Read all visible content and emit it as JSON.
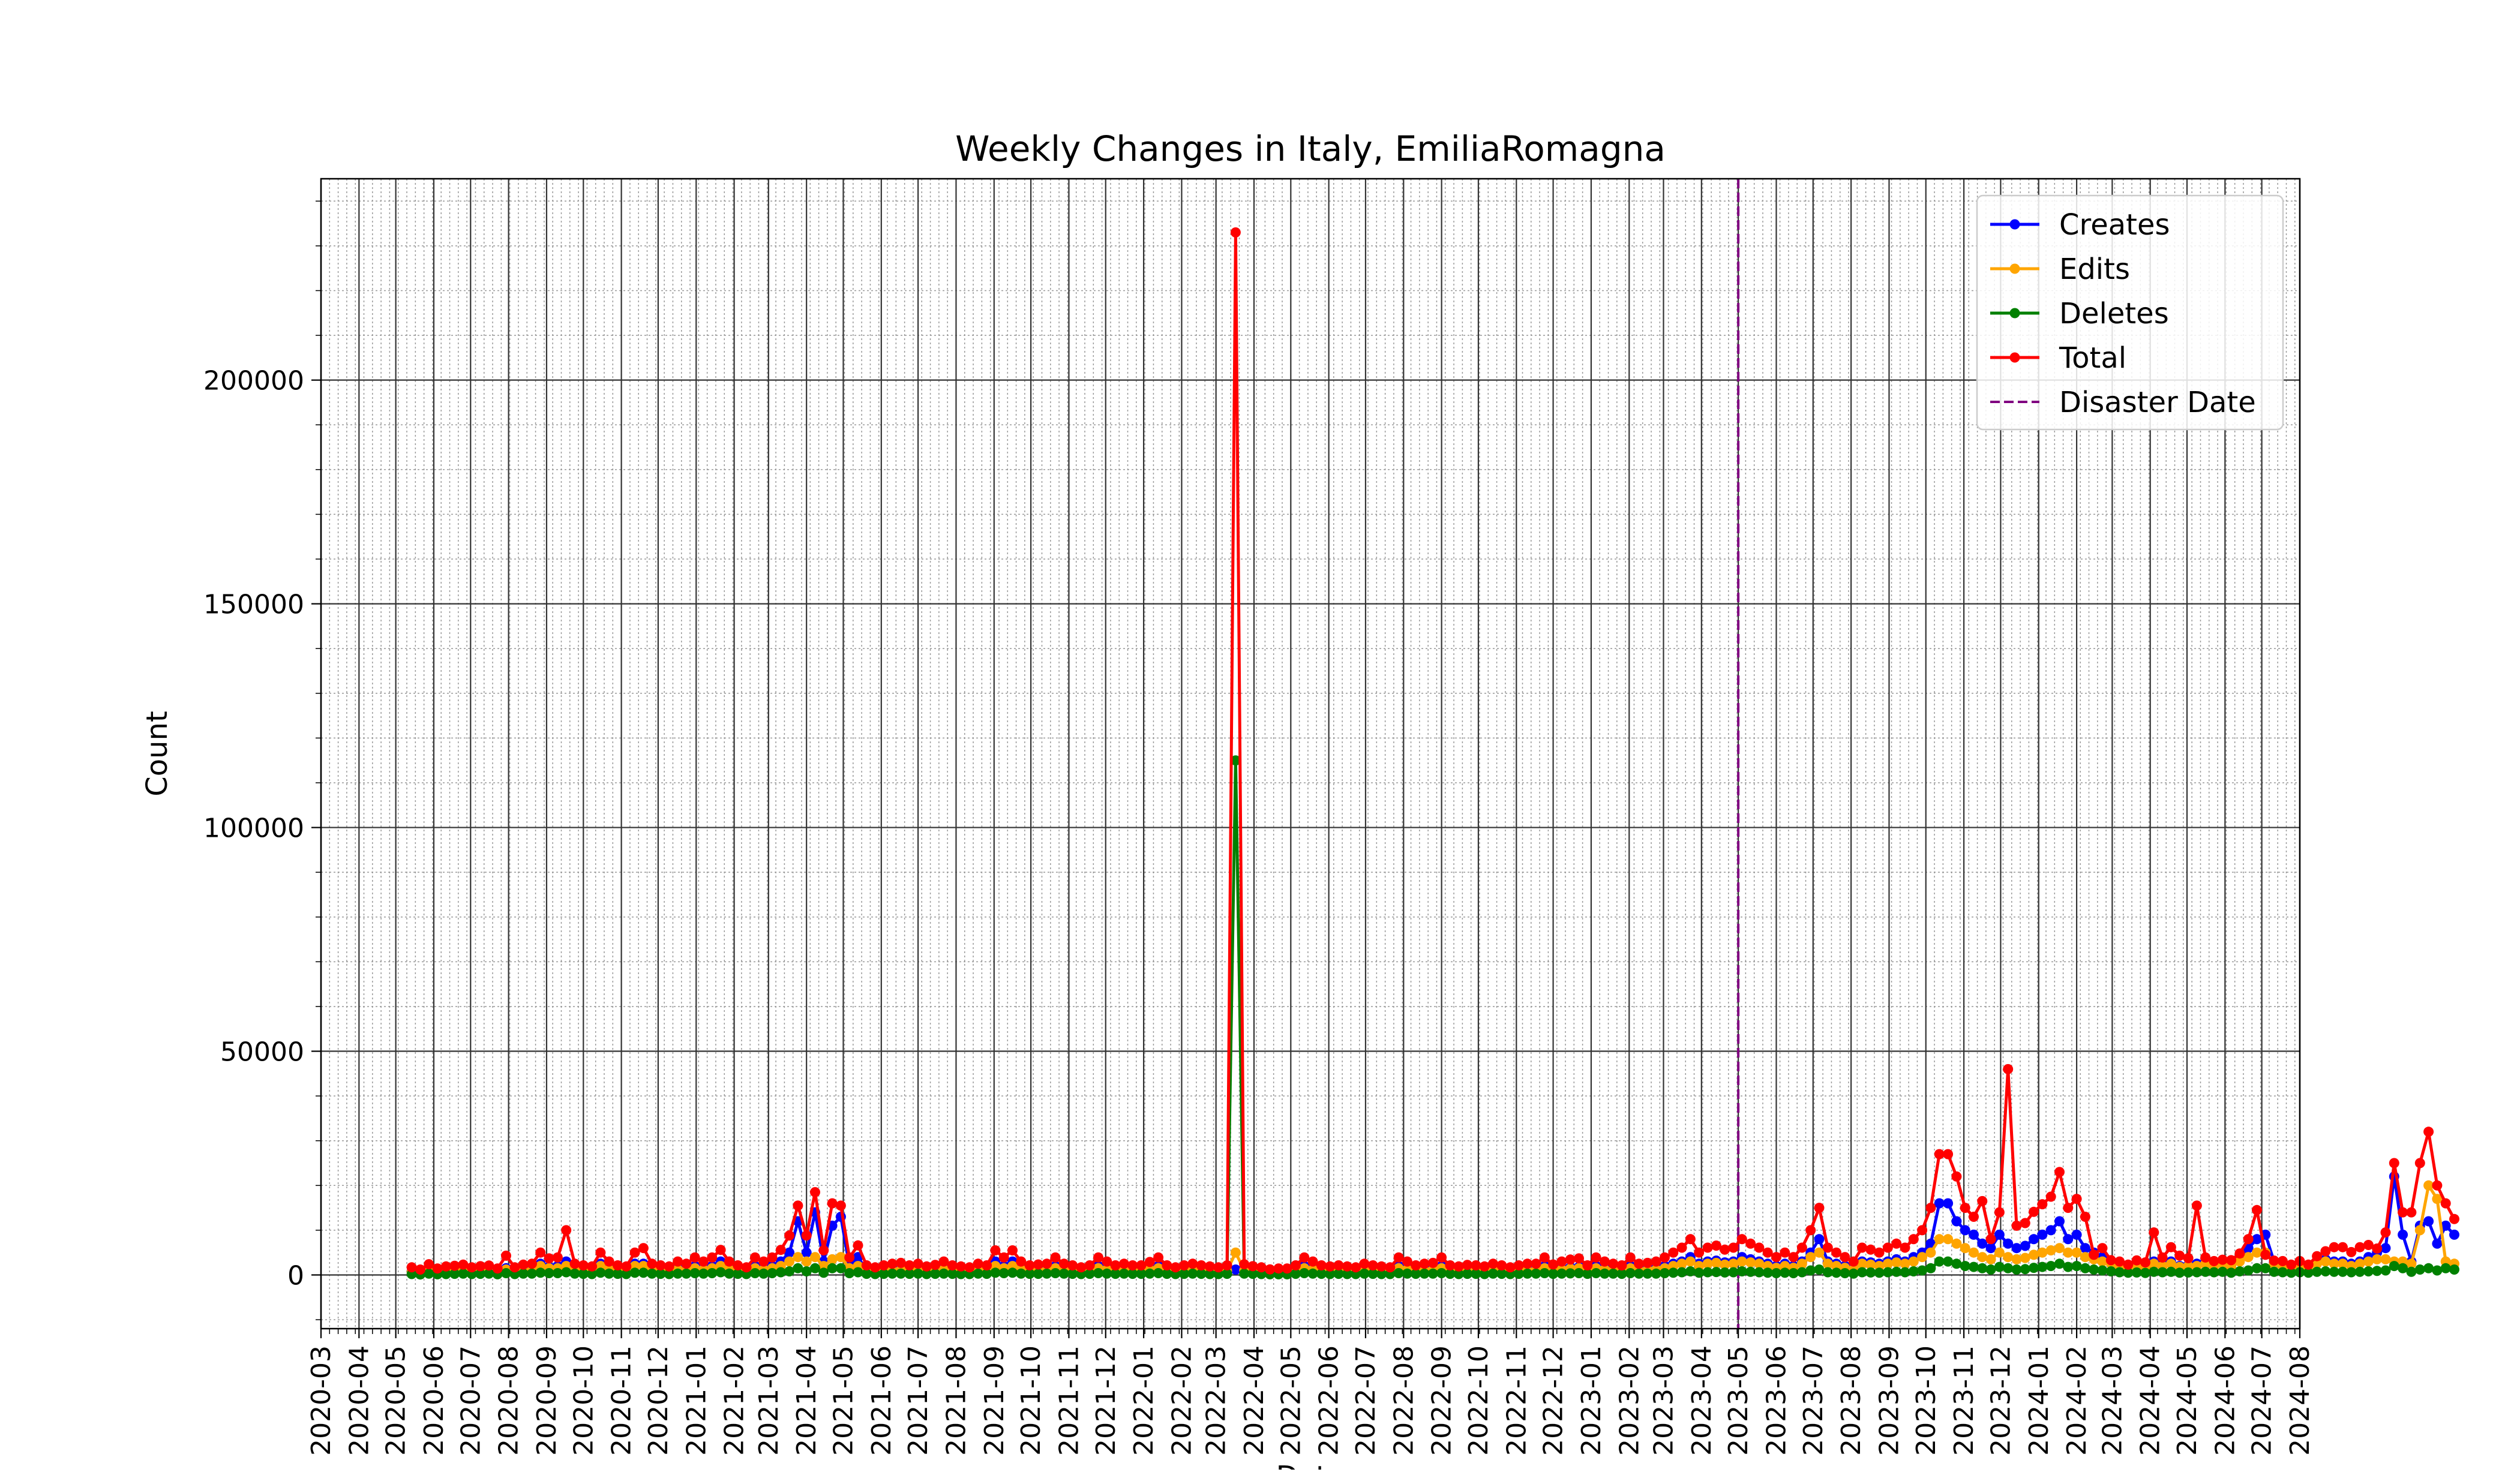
{
  "chart_data": {
    "type": "line",
    "title": "Weekly Changes in Italy, EmiliaRomagna",
    "xlabel": "Date",
    "ylabel": "Count",
    "xlim": [
      "2020-03-01",
      "2024-08-01"
    ],
    "ylim": [
      -12000,
      245000
    ],
    "yticks": [
      0,
      50000,
      100000,
      150000,
      200000
    ],
    "xtick_labels": [
      "2020-03",
      "2020-04",
      "2020-05",
      "2020-06",
      "2020-07",
      "2020-08",
      "2020-09",
      "2020-10",
      "2020-11",
      "2020-12",
      "2021-01",
      "2021-02",
      "2021-03",
      "2021-04",
      "2021-05",
      "2021-06",
      "2021-07",
      "2021-08",
      "2021-09",
      "2021-10",
      "2021-11",
      "2021-12",
      "2022-01",
      "2022-02",
      "2022-03",
      "2022-04",
      "2022-05",
      "2022-06",
      "2022-07",
      "2022-08",
      "2022-09",
      "2022-10",
      "2022-11",
      "2022-12",
      "2023-01",
      "2023-02",
      "2023-03",
      "2023-04",
      "2023-05",
      "2023-06",
      "2023-07",
      "2023-08",
      "2023-09",
      "2023-10",
      "2023-11",
      "2023-12",
      "2024-01",
      "2024-02",
      "2024-03",
      "2024-04",
      "2024-05",
      "2024-06",
      "2024-07",
      "2024-08"
    ],
    "grid": true,
    "legend_position": "top-right",
    "marker": "circle",
    "series_start_date": "2020-05-14",
    "series_interval_days": 7,
    "disaster": {
      "name": "Disaster Date",
      "date": "2023-05-01",
      "color": "#800080",
      "style": "dashed"
    },
    "series": [
      {
        "name": "Creates",
        "color": "#0000ff",
        "values": [
          800,
          600,
          1200,
          700,
          900,
          1000,
          1100,
          800,
          900,
          1000,
          700,
          1500,
          800,
          1100,
          1200,
          2500,
          1800,
          2000,
          3000,
          1200,
          1000,
          900,
          2500,
          1500,
          1000,
          900,
          2500,
          2500,
          1200,
          1000,
          900,
          1500,
          1200,
          2000,
          1500,
          2000,
          3000,
          1500,
          1000,
          800,
          2000,
          1500,
          2000,
          3000,
          5000,
          12000,
          5000,
          14000,
          3000,
          11000,
          13000,
          2000,
          4000,
          1000,
          800,
          1000,
          1200,
          1300,
          1000,
          1200,
          900,
          1100,
          1500,
          1000,
          900,
          800,
          1200,
          1000,
          3000,
          2000,
          3000,
          1500,
          1000,
          1100,
          1200,
          2000,
          1200,
          1000,
          800,
          1000,
          2000,
          1500,
          1000,
          1200,
          1000,
          1000,
          1400,
          2000,
          1000,
          800,
          1000,
          1200,
          1000,
          900,
          800,
          1000,
          1200,
          1100,
          900,
          800,
          600,
          700,
          700,
          1000,
          2000,
          1500,
          1000,
          900,
          1000,
          900,
          800,
          1200,
          1000,
          900,
          800,
          2000,
          1500,
          1000,
          1200,
          1300,
          2000,
          1000,
          900,
          1100,
          1000,
          900,
          1200,
          1000,
          800,
          1000,
          1200,
          1200,
          2000,
          1100,
          1500,
          1700,
          1800,
          1000,
          2000,
          1500,
          1200,
          1000,
          2000,
          1200,
          1300,
          1500,
          2000,
          2500,
          3000,
          4000,
          2500,
          3000,
          3200,
          2800,
          3000,
          4000,
          3500,
          3000,
          2500,
          2000,
          2500,
          2000,
          3000,
          5000,
          8000,
          3000,
          2500,
          2000,
          1500,
          3000,
          2800,
          2500,
          3000,
          3500,
          3000,
          4000,
          5000,
          7000,
          16000,
          16000,
          12000,
          10000,
          9000,
          7000,
          6000,
          9000,
          7000,
          6000,
          6500,
          8000,
          9000,
          10000,
          12000,
          8000,
          9000,
          6000,
          5000,
          4000,
          3000,
          2500,
          2000,
          2200,
          1800,
          3000,
          2500,
          3000,
          2000,
          2200,
          2500,
          3000,
          2500,
          3000,
          2000,
          4000,
          6000,
          8000,
          9000,
          3000,
          2500,
          2000,
          2500,
          2000,
          3000,
          3500,
          3000,
          3000,
          2500,
          3000,
          4000,
          5000,
          6000,
          22000,
          9000,
          3000,
          11000,
          12000,
          7000,
          11000,
          9000
        ]
      },
      {
        "name": "Edits",
        "color": "#ffa500",
        "values": [
          700,
          500,
          900,
          600,
          800,
          800,
          900,
          700,
          800,
          800,
          600,
          1200,
          700,
          900,
          1000,
          2000,
          1500,
          1500,
          2000,
          1000,
          900,
          800,
          2000,
          1200,
          900,
          800,
          2000,
          2000,
          1000,
          900,
          800,
          1200,
          1000,
          1500,
          1200,
          1500,
          2000,
          1200,
          900,
          700,
          1500,
          1200,
          1500,
          2000,
          3000,
          4000,
          3000,
          4000,
          2000,
          3500,
          4000,
          1500,
          2000,
          900,
          700,
          900,
          1000,
          1100,
          900,
          1000,
          800,
          900,
          1200,
          900,
          800,
          700,
          1000,
          900,
          2000,
          1500,
          2000,
          1200,
          900,
          1000,
          1000,
          1500,
          1000,
          900,
          700,
          900,
          1500,
          1200,
          900,
          1000,
          900,
          900,
          1200,
          1500,
          900,
          700,
          900,
          1000,
          900,
          800,
          700,
          900,
          5000,
          1000,
          800,
          700,
          500,
          600,
          600,
          900,
          1500,
          1200,
          900,
          800,
          900,
          800,
          700,
          1000,
          900,
          800,
          700,
          1500,
          1200,
          900,
          1000,
          1100,
          1500,
          900,
          800,
          900,
          900,
          800,
          1000,
          900,
          700,
          900,
          1000,
          1000,
          1500,
          1000,
          1200,
          1400,
          1500,
          900,
          1500,
          1200,
          1000,
          900,
          1500,
          1000,
          1100,
          1200,
          1500,
          2000,
          2500,
          3000,
          2000,
          2500,
          2700,
          2300,
          2500,
          3000,
          2800,
          2500,
          2000,
          1600,
          2000,
          1600,
          2500,
          4000,
          5000,
          2500,
          2000,
          1600,
          1200,
          2500,
          2300,
          2000,
          2500,
          2800,
          2500,
          3000,
          4000,
          5000,
          8000,
          8000,
          7000,
          6000,
          5000,
          4000,
          3500,
          5000,
          4000,
          3500,
          3800,
          4500,
          5000,
          5500,
          6000,
          5000,
          5000,
          4000,
          3500,
          3000,
          2500,
          2000,
          1800,
          2000,
          1600,
          2500,
          2000,
          2500,
          1800,
          2000,
          2000,
          2500,
          2000,
          2500,
          1800,
          3000,
          4000,
          5000,
          5000,
          2500,
          2000,
          1800,
          2000,
          1800,
          2500,
          3000,
          2500,
          2500,
          2000,
          2500,
          3000,
          3500,
          3500,
          3000,
          3000,
          2500,
          10000,
          20000,
          17000,
          3000,
          2500
        ]
      },
      {
        "name": "Deletes",
        "color": "#008000",
        "values": [
          200,
          100,
          300,
          150,
          200,
          250,
          300,
          200,
          250,
          300,
          150,
          400,
          200,
          300,
          300,
          500,
          400,
          400,
          600,
          300,
          250,
          200,
          500,
          300,
          250,
          200,
          500,
          500,
          300,
          250,
          200,
          300,
          300,
          400,
          300,
          400,
          600,
          300,
          250,
          200,
          400,
          300,
          400,
          600,
          800,
          1500,
          800,
          1500,
          500,
          1500,
          1500,
          400,
          600,
          250,
          200,
          250,
          300,
          300,
          250,
          300,
          200,
          250,
          300,
          250,
          200,
          200,
          300,
          250,
          500,
          400,
          500,
          300,
          250,
          250,
          300,
          400,
          300,
          250,
          200,
          250,
          400,
          300,
          250,
          300,
          250,
          250,
          300,
          400,
          250,
          200,
          250,
          300,
          250,
          200,
          200,
          250,
          115000,
          300,
          250,
          200,
          150,
          150,
          150,
          250,
          400,
          300,
          250,
          200,
          250,
          200,
          200,
          300,
          250,
          200,
          200,
          400,
          300,
          250,
          300,
          300,
          400,
          250,
          200,
          250,
          250,
          200,
          300,
          250,
          200,
          250,
          300,
          300,
          400,
          250,
          300,
          350,
          400,
          250,
          400,
          300,
          300,
          250,
          400,
          300,
          300,
          300,
          400,
          500,
          600,
          800,
          500,
          600,
          650,
          550,
          600,
          800,
          700,
          600,
          500,
          400,
          500,
          400,
          600,
          1000,
          1200,
          600,
          500,
          400,
          300,
          600,
          550,
          500,
          600,
          700,
          600,
          800,
          1000,
          1500,
          3000,
          3000,
          2500,
          2000,
          1800,
          1500,
          1200,
          1800,
          1500,
          1200,
          1300,
          1600,
          1800,
          2000,
          2500,
          1800,
          2000,
          1500,
          1200,
          1000,
          800,
          600,
          500,
          550,
          450,
          700,
          600,
          700,
          500,
          550,
          600,
          700,
          600,
          700,
          500,
          800,
          1000,
          1500,
          1500,
          700,
          600,
          500,
          600,
          500,
          700,
          800,
          700,
          700,
          600,
          700,
          800,
          900,
          1000,
          2000,
          1500,
          700,
          1200,
          1500,
          1000,
          1500,
          1200
        ]
      },
      {
        "name": "Total",
        "color": "#ff0000",
        "values": [
          1700,
          1200,
          2400,
          1450,
          1900,
          2050,
          2300,
          1700,
          1950,
          2100,
          1450,
          4300,
          1700,
          2300,
          2500,
          5000,
          3700,
          3900,
          10000,
          2500,
          2150,
          1900,
          5000,
          3000,
          2150,
          1900,
          5000,
          6000,
          2500,
          2150,
          1900,
          3000,
          2500,
          3900,
          3000,
          3900,
          5600,
          3000,
          2150,
          1700,
          3900,
          3000,
          3900,
          5600,
          8800,
          15500,
          8800,
          18500,
          5500,
          16000,
          15500,
          3900,
          6600,
          2150,
          1700,
          2150,
          2500,
          2700,
          2150,
          2500,
          1900,
          2250,
          3000,
          2150,
          1900,
          1700,
          2500,
          2150,
          5500,
          3900,
          5500,
          3000,
          2150,
          2350,
          2500,
          3900,
          2500,
          2150,
          1700,
          2150,
          3900,
          3000,
          2150,
          2500,
          2150,
          2150,
          2900,
          3900,
          2150,
          1700,
          2150,
          2500,
          2150,
          1900,
          1700,
          2150,
          233000,
          2400,
          1950,
          1700,
          1250,
          1450,
          1450,
          2150,
          3900,
          3000,
          2150,
          1900,
          2150,
          1900,
          1700,
          2500,
          2150,
          1900,
          1700,
          3900,
          3000,
          2150,
          2500,
          2700,
          3900,
          2150,
          1900,
          2250,
          2150,
          1900,
          2500,
          2150,
          1700,
          2150,
          2500,
          2500,
          3900,
          2350,
          3000,
          3450,
          3700,
          2150,
          3900,
          3000,
          2500,
          2150,
          3900,
          2500,
          2700,
          3000,
          3900,
          5000,
          6100,
          8000,
          5000,
          6100,
          6550,
          5650,
          6100,
          8000,
          7000,
          6100,
          5000,
          4000,
          5000,
          4000,
          6100,
          10000,
          15000,
          6100,
          5000,
          4000,
          3000,
          6100,
          5650,
          5000,
          6100,
          7000,
          6100,
          8000,
          10000,
          15000,
          27000,
          27000,
          22000,
          15000,
          13000,
          16500,
          8000,
          14000,
          46000,
          11000,
          11600,
          14100,
          15800,
          17500,
          23000,
          15000,
          17000,
          13000,
          4500,
          6000,
          3300,
          3000,
          2300,
          3250,
          2800,
          9500,
          3900,
          6200,
          4300,
          3750,
          15500,
          3900,
          3100,
          3400,
          3300,
          4800,
          8000,
          14500,
          4500,
          3200,
          3100,
          2300,
          3100,
          2300,
          4200,
          5300,
          6200,
          6200,
          5100,
          6200,
          6700,
          5900,
          9500,
          25000,
          14000,
          14000,
          25000,
          32000,
          20000,
          16000,
          12500
        ]
      }
    ]
  }
}
